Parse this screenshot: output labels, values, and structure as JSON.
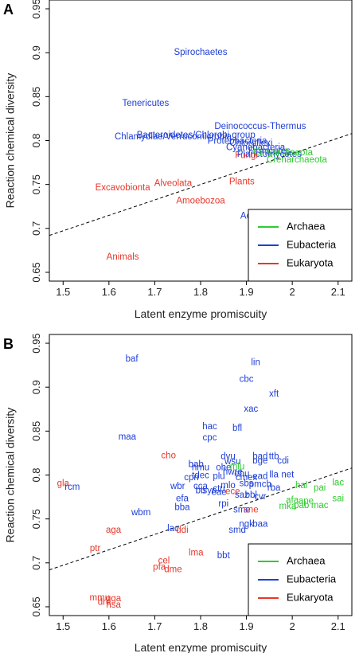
{
  "colors": {
    "Archaea": "#2ecc2e",
    "Eubacteria": "#1f3fd6",
    "Eukaryota": "#e8372a"
  },
  "chart_data": [
    {
      "type": "scatter",
      "panel": "A",
      "xlabel": "Latent enzyme promiscuity",
      "ylabel": "Reaction chemical diversity",
      "xlim": [
        1.47,
        2.13
      ],
      "ylim": [
        0.64,
        0.96
      ],
      "xticks": [
        1.5,
        1.6,
        1.7,
        1.8,
        1.9,
        2.0,
        2.1
      ],
      "yticks": [
        0.65,
        0.7,
        0.75,
        0.8,
        0.85,
        0.9,
        0.95
      ],
      "legend": {
        "position": "bottom-right",
        "entries": [
          "Archaea",
          "Eubacteria",
          "Eukaryota"
        ]
      },
      "trend_line": {
        "style": "dashed",
        "x": [
          1.47,
          2.13
        ],
        "y": [
          0.692,
          0.808
        ]
      },
      "points": [
        {
          "label": "Spirochaetes",
          "x": 1.8,
          "y": 0.9,
          "group": "Eubacteria"
        },
        {
          "label": "Tenericutes",
          "x": 1.68,
          "y": 0.842,
          "group": "Eubacteria"
        },
        {
          "label": "Deinococcus-Thermus",
          "x": 1.93,
          "y": 0.816,
          "group": "Eubacteria"
        },
        {
          "label": "Chlamydiae/Verrucomicrobia",
          "x": 1.74,
          "y": 0.804,
          "group": "Eubacteria"
        },
        {
          "label": "Bacteroidetes/Chlorobi group",
          "x": 1.79,
          "y": 0.806,
          "group": "Eubacteria"
        },
        {
          "label": "Proteobacteria",
          "x": 1.88,
          "y": 0.799,
          "group": "Eubacteria"
        },
        {
          "label": "Chloroflexi",
          "x": 1.91,
          "y": 0.797,
          "group": "Eubacteria"
        },
        {
          "label": "Cyanobacteria",
          "x": 1.92,
          "y": 0.792,
          "group": "Eubacteria"
        },
        {
          "label": "Firmicutes",
          "x": 1.95,
          "y": 0.788,
          "group": "Eubacteria"
        },
        {
          "label": "Planctomycetes",
          "x": 1.95,
          "y": 0.784,
          "group": "Eubacteria"
        },
        {
          "label": "Euryarchaeota",
          "x": 1.98,
          "y": 0.786,
          "group": "Archaea"
        },
        {
          "label": "Crenarchaeota",
          "x": 2.01,
          "y": 0.778,
          "group": "Archaea"
        },
        {
          "label": "Fungi",
          "x": 1.9,
          "y": 0.783,
          "group": "Eukaryota"
        },
        {
          "label": "Excavobionta",
          "x": 1.63,
          "y": 0.746,
          "group": "Eukaryota"
        },
        {
          "label": "Alveolata",
          "x": 1.74,
          "y": 0.751,
          "group": "Eukaryota"
        },
        {
          "label": "Plants",
          "x": 1.89,
          "y": 0.753,
          "group": "Eukaryota"
        },
        {
          "label": "Amoebozoa",
          "x": 1.8,
          "y": 0.731,
          "group": "Eukaryota"
        },
        {
          "label": "Actinobacteria",
          "x": 1.95,
          "y": 0.714,
          "group": "Eubacteria"
        },
        {
          "label": "Animals",
          "x": 1.63,
          "y": 0.667,
          "group": "Eukaryota"
        }
      ]
    },
    {
      "type": "scatter",
      "panel": "B",
      "xlabel": "Latent enzyme promiscuity",
      "ylabel": "Reaction chemical diversity",
      "xlim": [
        1.47,
        2.13
      ],
      "ylim": [
        0.64,
        0.96
      ],
      "xticks": [
        1.5,
        1.6,
        1.7,
        1.8,
        1.9,
        2.0,
        2.1
      ],
      "yticks": [
        0.65,
        0.7,
        0.75,
        0.8,
        0.85,
        0.9,
        0.95
      ],
      "legend": {
        "position": "bottom-right",
        "entries": [
          "Archaea",
          "Eubacteria",
          "Eukaryota"
        ]
      },
      "trend_line": {
        "style": "dashed",
        "x": [
          1.47,
          2.13
        ],
        "y": [
          0.692,
          0.808
        ]
      },
      "points": [
        {
          "label": "baf",
          "x": 1.65,
          "y": 0.932,
          "group": "Eubacteria"
        },
        {
          "label": "lin",
          "x": 1.92,
          "y": 0.928,
          "group": "Eubacteria"
        },
        {
          "label": "cbc",
          "x": 1.9,
          "y": 0.909,
          "group": "Eubacteria"
        },
        {
          "label": "xft",
          "x": 1.96,
          "y": 0.892,
          "group": "Eubacteria"
        },
        {
          "label": "xac",
          "x": 1.91,
          "y": 0.875,
          "group": "Eubacteria"
        },
        {
          "label": "bfl",
          "x": 1.88,
          "y": 0.853,
          "group": "Eubacteria"
        },
        {
          "label": "hac",
          "x": 1.82,
          "y": 0.855,
          "group": "Eubacteria"
        },
        {
          "label": "maa",
          "x": 1.64,
          "y": 0.843,
          "group": "Eubacteria"
        },
        {
          "label": "cpc",
          "x": 1.82,
          "y": 0.842,
          "group": "Eubacteria"
        },
        {
          "label": "cho",
          "x": 1.73,
          "y": 0.822,
          "group": "Eukaryota"
        },
        {
          "label": "dvu",
          "x": 1.86,
          "y": 0.821,
          "group": "Eubacteria"
        },
        {
          "label": "bad",
          "x": 1.93,
          "y": 0.821,
          "group": "Eubacteria"
        },
        {
          "label": "ttb",
          "x": 1.96,
          "y": 0.821,
          "group": "Eubacteria"
        },
        {
          "label": "wsu",
          "x": 1.87,
          "y": 0.815,
          "group": "Eubacteria"
        },
        {
          "label": "bge",
          "x": 1.93,
          "y": 0.816,
          "group": "Eubacteria"
        },
        {
          "label": "cdi",
          "x": 1.98,
          "y": 0.816,
          "group": "Eubacteria"
        },
        {
          "label": "bab",
          "x": 1.79,
          "y": 0.812,
          "group": "Eubacteria"
        },
        {
          "label": "hmu",
          "x": 1.8,
          "y": 0.808,
          "group": "Eubacteria"
        },
        {
          "label": "ohe",
          "x": 1.85,
          "y": 0.808,
          "group": "Eubacteria"
        },
        {
          "label": "mlu",
          "x": 1.88,
          "y": 0.809,
          "group": "Archaea"
        },
        {
          "label": "cpn",
          "x": 1.78,
          "y": 0.797,
          "group": "Eubacteria"
        },
        {
          "label": "tdec",
          "x": 1.8,
          "y": 0.799,
          "group": "Eubacteria"
        },
        {
          "label": "plu",
          "x": 1.84,
          "y": 0.798,
          "group": "Eubacteria"
        },
        {
          "label": "hwre",
          "x": 1.87,
          "y": 0.803,
          "group": "Eubacteria"
        },
        {
          "label": "ehu",
          "x": 1.89,
          "y": 0.801,
          "group": "Eubacteria"
        },
        {
          "label": "cmex",
          "x": 1.9,
          "y": 0.797,
          "group": "Eubacteria"
        },
        {
          "label": "ead",
          "x": 1.93,
          "y": 0.798,
          "group": "Eubacteria"
        },
        {
          "label": "lla",
          "x": 1.96,
          "y": 0.8,
          "group": "Eubacteria"
        },
        {
          "label": "net",
          "x": 1.99,
          "y": 0.8,
          "group": "Eubacteria"
        },
        {
          "label": "gla",
          "x": 1.5,
          "y": 0.79,
          "group": "Eukaryota"
        },
        {
          "label": "rcm",
          "x": 1.52,
          "y": 0.786,
          "group": "Eubacteria"
        },
        {
          "label": "wbr",
          "x": 1.75,
          "y": 0.787,
          "group": "Eubacteria"
        },
        {
          "label": "cca",
          "x": 1.8,
          "y": 0.787,
          "group": "Eubacteria"
        },
        {
          "label": "ctu",
          "x": 1.84,
          "y": 0.784,
          "group": "Eubacteria"
        },
        {
          "label": "mlo",
          "x": 1.86,
          "y": 0.788,
          "group": "Eubacteria"
        },
        {
          "label": "sbs",
          "x": 1.9,
          "y": 0.79,
          "group": "Eubacteria"
        },
        {
          "label": "pmch",
          "x": 1.93,
          "y": 0.789,
          "group": "Eubacteria"
        },
        {
          "label": "rba",
          "x": 1.96,
          "y": 0.785,
          "group": "Eubacteria"
        },
        {
          "label": "hal",
          "x": 2.02,
          "y": 0.788,
          "group": "Archaea"
        },
        {
          "label": "lac",
          "x": 2.1,
          "y": 0.791,
          "group": "Archaea"
        },
        {
          "label": "pai",
          "x": 2.06,
          "y": 0.785,
          "group": "Archaea"
        },
        {
          "label": "bb",
          "x": 1.8,
          "y": 0.782,
          "group": "Eubacteria"
        },
        {
          "label": "syn",
          "x": 1.82,
          "y": 0.782,
          "group": "Eubacteria"
        },
        {
          "label": "eae",
          "x": 1.84,
          "y": 0.78,
          "group": "Eubacteria"
        },
        {
          "label": "ece",
          "x": 1.87,
          "y": 0.781,
          "group": "Eukaryota"
        },
        {
          "label": "saz",
          "x": 1.89,
          "y": 0.777,
          "group": "Eubacteria"
        },
        {
          "label": "bbl",
          "x": 1.91,
          "y": 0.777,
          "group": "Eubacteria"
        },
        {
          "label": "cvr",
          "x": 1.93,
          "y": 0.775,
          "group": "Eubacteria"
        },
        {
          "label": "efa",
          "x": 1.76,
          "y": 0.773,
          "group": "Eubacteria"
        },
        {
          "label": "sai",
          "x": 2.1,
          "y": 0.773,
          "group": "Archaea"
        },
        {
          "label": "afa",
          "x": 2.0,
          "y": 0.771,
          "group": "Archaea"
        },
        {
          "label": "ape",
          "x": 2.03,
          "y": 0.77,
          "group": "Archaea"
        },
        {
          "label": "pab",
          "x": 2.02,
          "y": 0.765,
          "group": "Archaea"
        },
        {
          "label": "mac",
          "x": 2.06,
          "y": 0.765,
          "group": "Archaea"
        },
        {
          "label": "mka",
          "x": 1.99,
          "y": 0.764,
          "group": "Archaea"
        },
        {
          "label": "rpi",
          "x": 1.85,
          "y": 0.767,
          "group": "Eubacteria"
        },
        {
          "label": "bba",
          "x": 1.76,
          "y": 0.763,
          "group": "Eubacteria"
        },
        {
          "label": "sme",
          "x": 1.89,
          "y": 0.76,
          "group": "Eubacteria"
        },
        {
          "label": "sne",
          "x": 1.91,
          "y": 0.76,
          "group": "Eukaryota"
        },
        {
          "label": "wbm",
          "x": 1.67,
          "y": 0.757,
          "group": "Eubacteria"
        },
        {
          "label": "ngk",
          "x": 1.9,
          "y": 0.744,
          "group": "Eubacteria"
        },
        {
          "label": "baa",
          "x": 1.93,
          "y": 0.744,
          "group": "Eubacteria"
        },
        {
          "label": "aga",
          "x": 1.61,
          "y": 0.737,
          "group": "Eukaryota"
        },
        {
          "label": "lac",
          "x": 1.74,
          "y": 0.739,
          "group": "Eubacteria"
        },
        {
          "label": "smd",
          "x": 1.88,
          "y": 0.737,
          "group": "Eubacteria"
        },
        {
          "label": "ddi",
          "x": 1.76,
          "y": 0.737,
          "group": "Eukaryota"
        },
        {
          "label": "ptr",
          "x": 1.57,
          "y": 0.716,
          "group": "Eukaryota"
        },
        {
          "label": "lma",
          "x": 1.79,
          "y": 0.711,
          "group": "Eukaryota"
        },
        {
          "label": "bbt",
          "x": 1.85,
          "y": 0.708,
          "group": "Eubacteria"
        },
        {
          "label": "cel",
          "x": 1.72,
          "y": 0.702,
          "group": "Eukaryota"
        },
        {
          "label": "pfa",
          "x": 1.71,
          "y": 0.695,
          "group": "Eukaryota"
        },
        {
          "label": "dme",
          "x": 1.74,
          "y": 0.692,
          "group": "Eukaryota"
        },
        {
          "label": "mmu",
          "x": 1.58,
          "y": 0.66,
          "group": "Eukaryota"
        },
        {
          "label": "gga",
          "x": 1.61,
          "y": 0.659,
          "group": "Eukaryota"
        },
        {
          "label": "dre",
          "x": 1.59,
          "y": 0.655,
          "group": "Eukaryota"
        },
        {
          "label": "hsa",
          "x": 1.61,
          "y": 0.652,
          "group": "Eukaryota"
        }
      ]
    }
  ]
}
